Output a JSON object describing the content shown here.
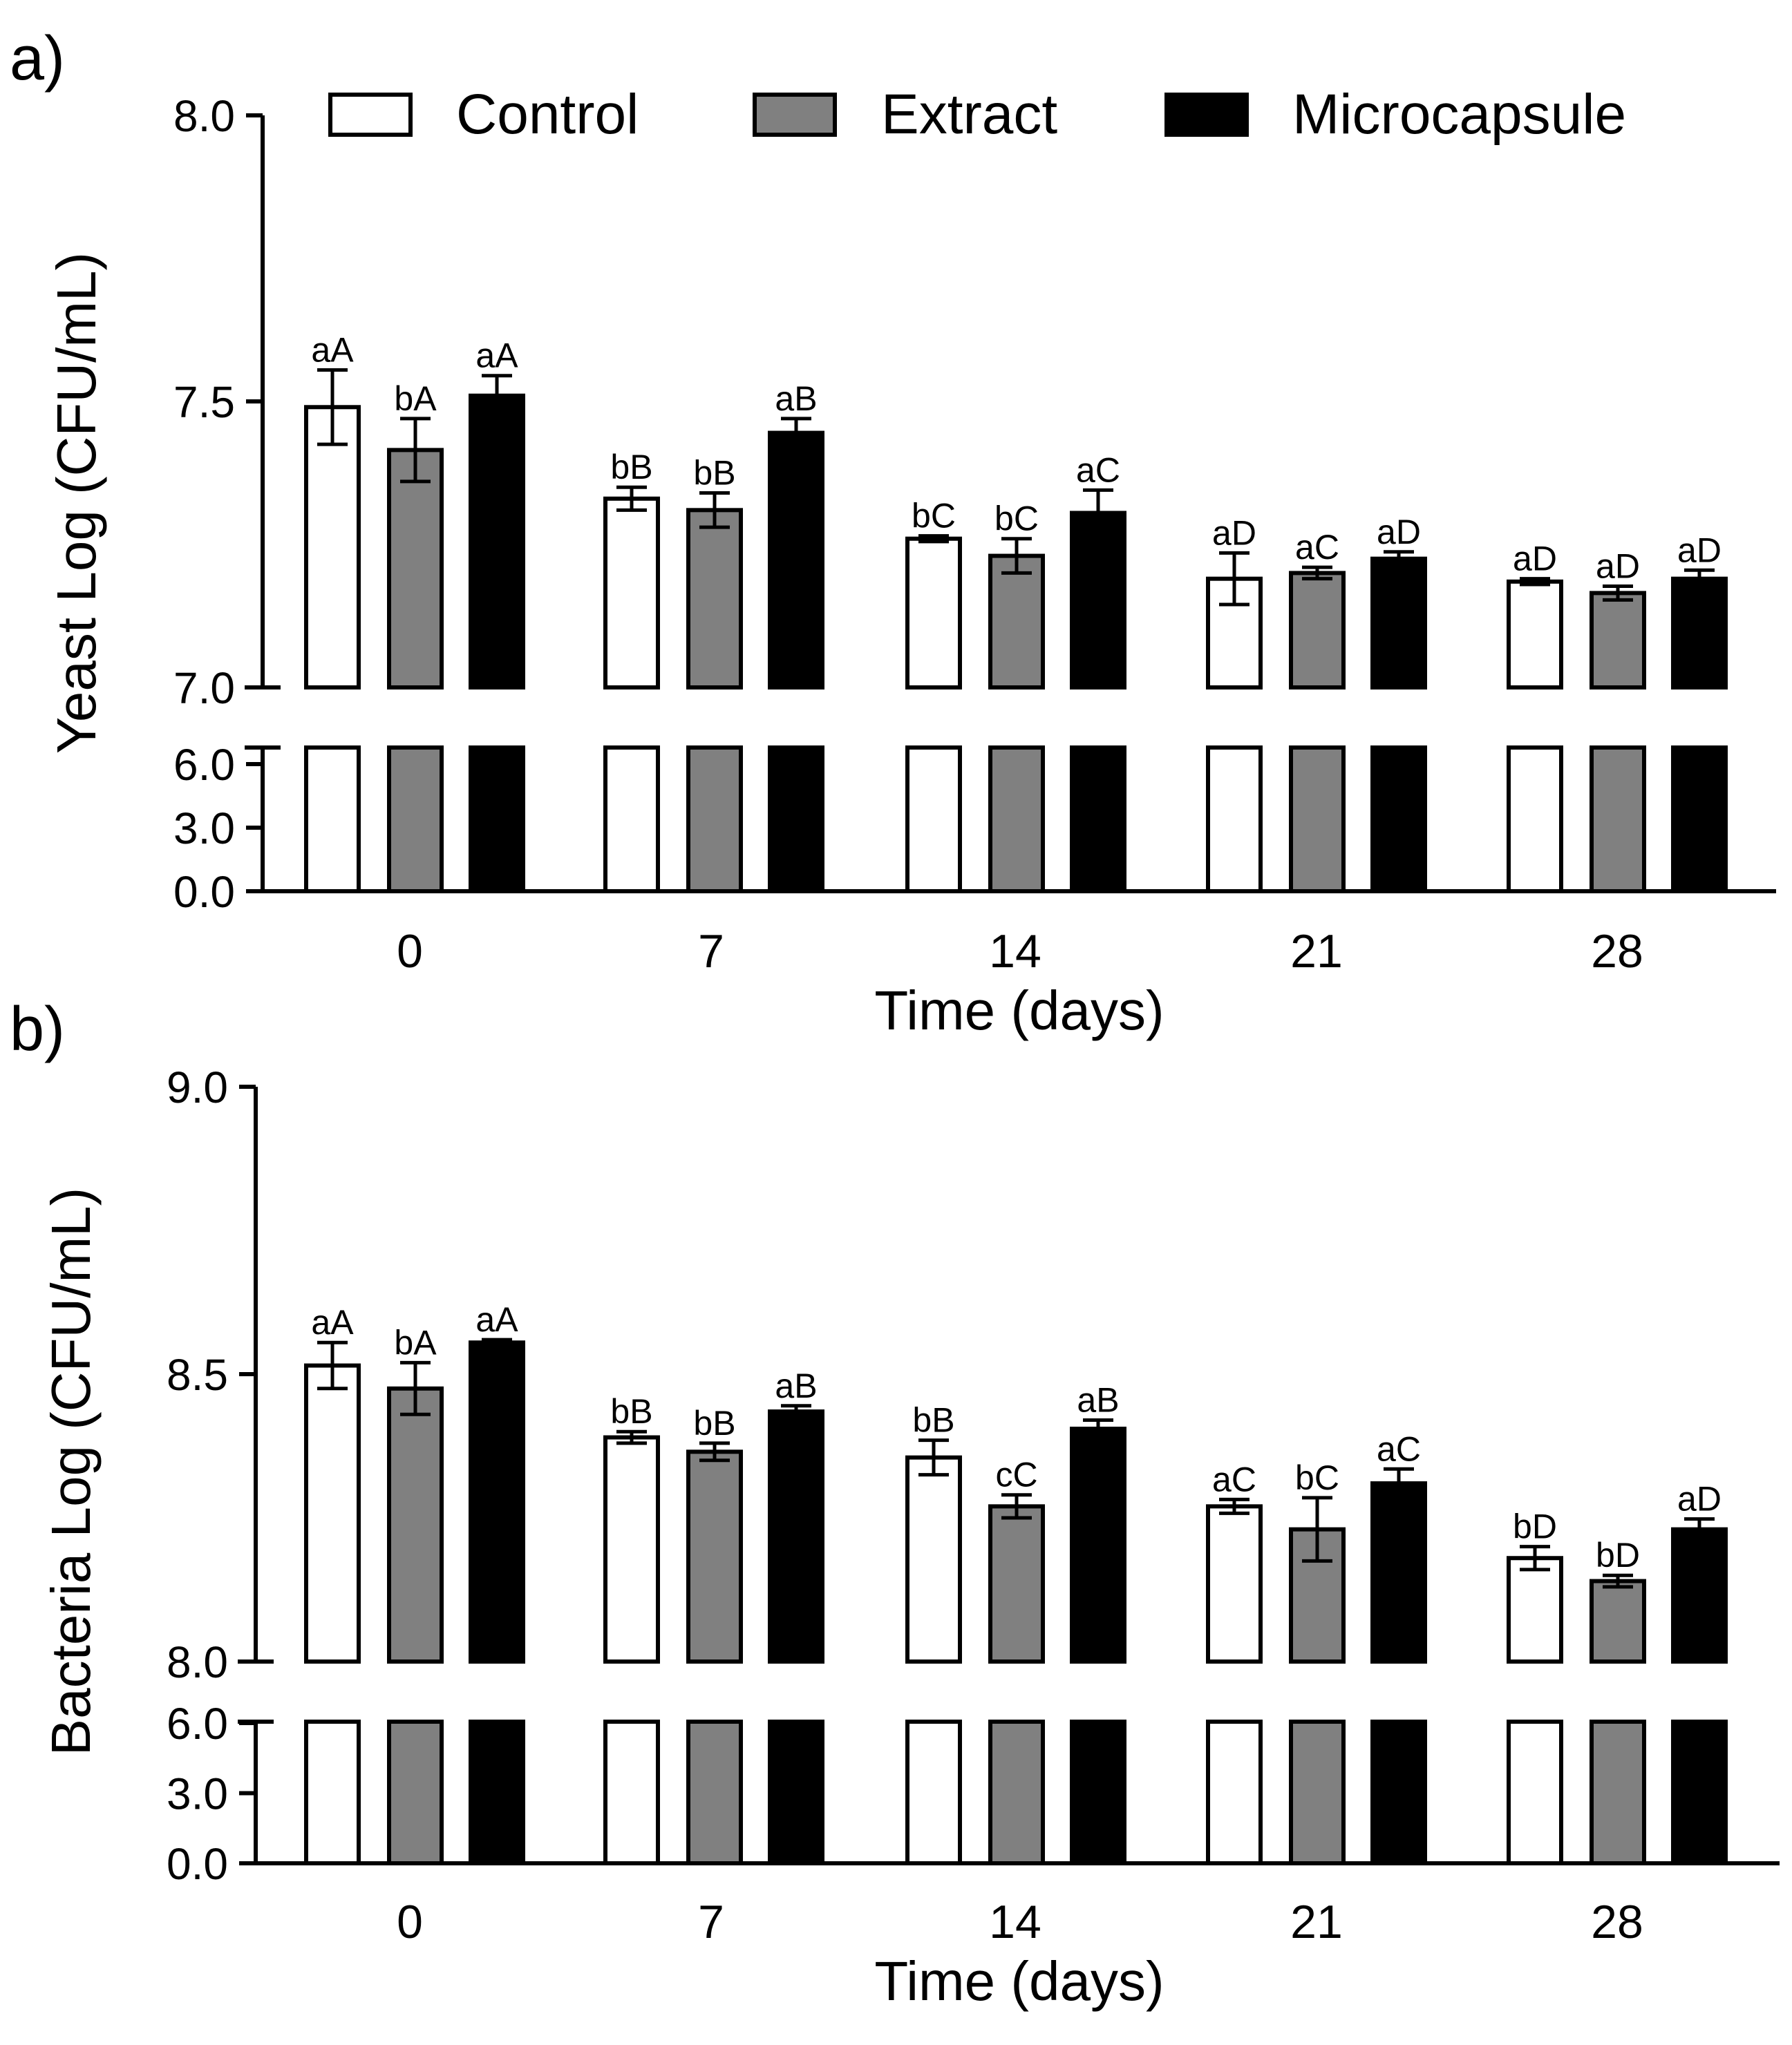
{
  "legend": [
    {
      "name": "Control",
      "color": "#ffffff"
    },
    {
      "name": "Extract",
      "color": "#808080"
    },
    {
      "name": "Microcapsule",
      "color": "#000000"
    }
  ],
  "chart_data": [
    {
      "type": "bar",
      "panel_label": "a)",
      "ylabel": "Yeast Log (CFU/mL)",
      "xlabel": "Time (days)",
      "categories": [
        "0",
        "7",
        "14",
        "21",
        "28"
      ],
      "y_upper_range": [
        7.0,
        8.0
      ],
      "y_upper_ticks": [
        "7.0",
        "7.5",
        "8.0"
      ],
      "y_lower_range": [
        0.0,
        6.0
      ],
      "y_lower_ticks": [
        "0.0",
        "3.0",
        "6.0"
      ],
      "legend_placement": "top",
      "grid": false,
      "series": [
        {
          "name": "Control",
          "values": [
            7.49,
            7.33,
            7.26,
            7.19,
            7.185
          ],
          "errors": [
            0.065,
            0.02,
            0.005,
            0.045,
            0.005
          ],
          "labels": [
            "aA",
            "bB",
            "bC",
            "aD",
            "aD"
          ]
        },
        {
          "name": "Extract",
          "values": [
            7.415,
            7.31,
            7.23,
            7.2,
            7.165
          ],
          "errors": [
            0.055,
            0.03,
            0.03,
            0.01,
            0.012
          ],
          "labels": [
            "bA",
            "bB",
            "bC",
            "aC",
            "aD"
          ]
        },
        {
          "name": "Microcapsule",
          "values": [
            7.51,
            7.445,
            7.305,
            7.225,
            7.19
          ],
          "errors": [
            0.035,
            0.025,
            0.04,
            0.012,
            0.015
          ],
          "labels": [
            "aA",
            "aB",
            "aC",
            "aD",
            "aD"
          ]
        }
      ]
    },
    {
      "type": "bar",
      "panel_label": "b)",
      "ylabel": "Bacteria Log (CFU/mL)",
      "xlabel": "Time (days)",
      "categories": [
        "0",
        "7",
        "14",
        "21",
        "28"
      ],
      "y_upper_range": [
        8.0,
        9.0
      ],
      "y_upper_ticks": [
        "8.0",
        "8.5",
        "9.0"
      ],
      "y_lower_range": [
        0.0,
        6.0
      ],
      "y_lower_ticks": [
        "0.0",
        "3.0",
        "6.0"
      ],
      "grid": false,
      "series": [
        {
          "name": "Control",
          "values": [
            8.515,
            8.39,
            8.355,
            8.27,
            8.18
          ],
          "errors": [
            0.04,
            0.01,
            0.03,
            0.012,
            0.02
          ],
          "labels": [
            "aA",
            "bB",
            "bB",
            "aC",
            "bD"
          ]
        },
        {
          "name": "Extract",
          "values": [
            8.475,
            8.365,
            8.27,
            8.23,
            8.14
          ],
          "errors": [
            0.045,
            0.015,
            0.02,
            0.055,
            0.01
          ],
          "labels": [
            "bA",
            "bB",
            "cC",
            "bC",
            "bD"
          ]
        },
        {
          "name": "Microcapsule",
          "values": [
            8.555,
            8.435,
            8.405,
            8.31,
            8.23
          ],
          "errors": [
            0.005,
            0.01,
            0.015,
            0.025,
            0.018
          ],
          "labels": [
            "aA",
            "aB",
            "aB",
            "aC",
            "aD"
          ]
        }
      ]
    }
  ]
}
